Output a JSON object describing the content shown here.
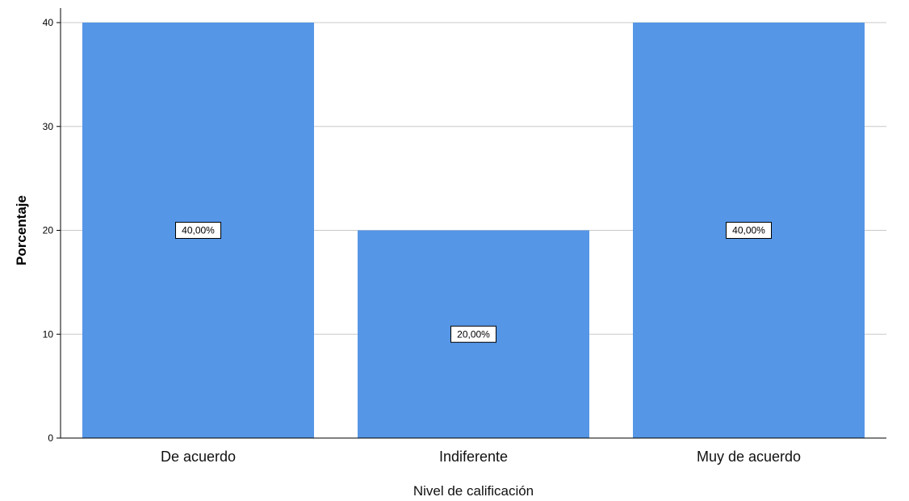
{
  "chart_data": {
    "type": "bar",
    "categories": [
      "De acuerdo",
      "Indiferente",
      "Muy de acuerdo"
    ],
    "values": [
      40,
      20,
      40
    ],
    "data_labels": [
      "40,00%",
      "20,00%",
      "40,00%"
    ],
    "title": "",
    "xlabel": "Nivel de calificación",
    "ylabel": "Porcentaje",
    "ylim": [
      0,
      40
    ],
    "yticks": [
      0,
      10,
      20,
      30,
      40
    ],
    "ytick_labels": [
      "0",
      "10",
      "20",
      "30",
      "40"
    ],
    "grid": true,
    "bar_color": "#5596e6"
  }
}
